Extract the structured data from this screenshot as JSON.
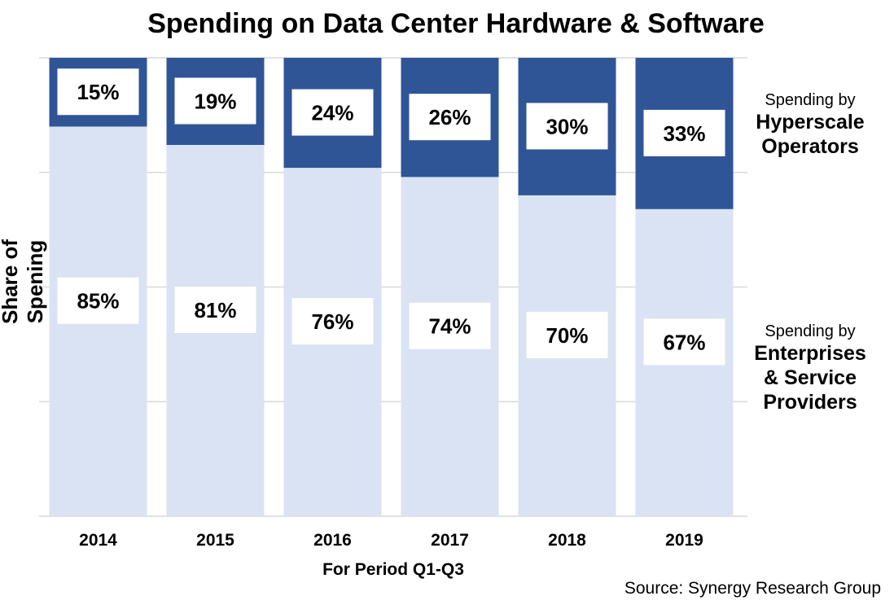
{
  "chart_data": {
    "type": "bar",
    "stacked": true,
    "title": "Spending on Data Center Hardware & Software",
    "ylabel": "Share of Spening",
    "xlabel": "For Period Q1-Q3",
    "source": "Source: Synergy Research Group",
    "categories": [
      "2014",
      "2015",
      "2016",
      "2017",
      "2018",
      "2019"
    ],
    "ylim": [
      0,
      100
    ],
    "grid": true,
    "series": [
      {
        "name": "Spending by Enterprises & Service Providers",
        "label_small": "Spending by",
        "label_big": [
          "Enterprises",
          "& Service",
          "Providers"
        ],
        "values": [
          85,
          81,
          76,
          74,
          70,
          67
        ],
        "color": "#dae3f3"
      },
      {
        "name": "Spending by Hyperscale Operators",
        "label_small": "Spending by",
        "label_big": [
          "Hyperscale",
          "Operators"
        ],
        "values": [
          15,
          19,
          24,
          26,
          30,
          33
        ],
        "color": "#2f5597"
      }
    ]
  }
}
